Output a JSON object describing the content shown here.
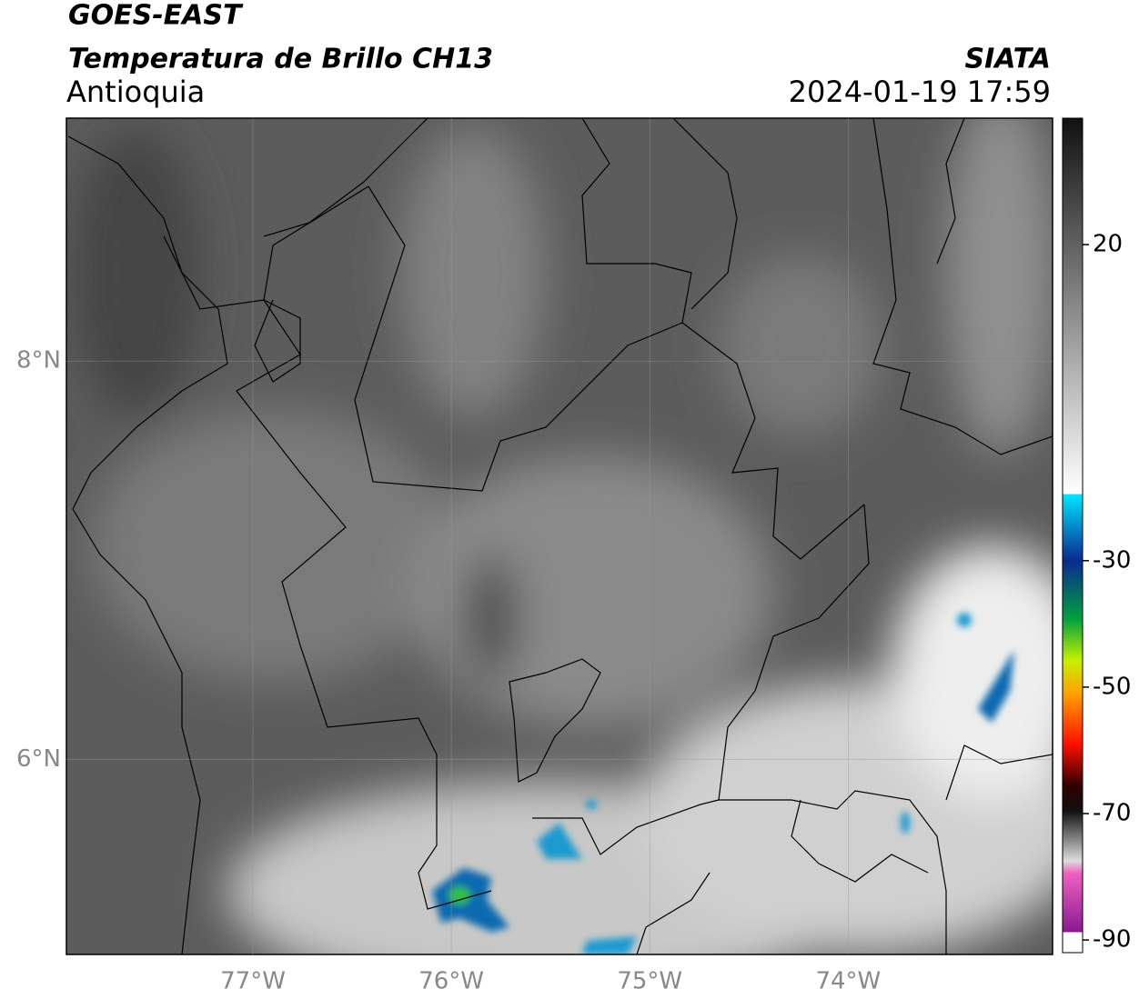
{
  "header": {
    "satellite": "GOES-EAST",
    "product": "Temperatura de Brillo CH13",
    "region": "Antioquia",
    "source": "SIATA",
    "datetime": "2024-01-19 17:59"
  },
  "map": {
    "xlim": [
      -77.94,
      -72.97
    ],
    "ylim": [
      5.02,
      9.22
    ],
    "xticks": [
      {
        "value": -77,
        "label": "77°W"
      },
      {
        "value": -76,
        "label": "76°W"
      },
      {
        "value": -75,
        "label": "75°W"
      },
      {
        "value": -74,
        "label": "74°W"
      }
    ],
    "yticks": [
      {
        "value": 8,
        "label": "8°N"
      },
      {
        "value": 6,
        "label": "6°N"
      }
    ]
  },
  "colorbar": {
    "lim": [
      -92,
      40
    ],
    "ticks": [
      20,
      -30,
      -50,
      -70,
      -90
    ]
  }
}
